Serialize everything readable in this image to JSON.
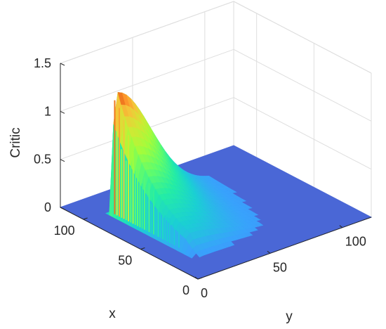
{
  "chart_data": {
    "type": "surface",
    "title": "",
    "xlabel": "x",
    "ylabel": "y",
    "zlabel": "Critic",
    "xlim": [
      0,
      120
    ],
    "ylim": [
      0,
      120
    ],
    "zlim": [
      0,
      1.5
    ],
    "x_ticks": [
      "0",
      "50",
      "100"
    ],
    "y_ticks": [
      "0",
      "50",
      "100"
    ],
    "z_ticks": [
      "0",
      "0.5",
      "1",
      "1.5"
    ],
    "x_tick_values": [
      0,
      50,
      100
    ],
    "y_tick_values": [
      0,
      50,
      100
    ],
    "z_tick_values": [
      0,
      0.5,
      1,
      1.5
    ],
    "grid": true,
    "colormap": "turbo",
    "base_color": "#4a67d6",
    "surface_description_values": {
      "peak_value": 1.25,
      "peak_location": {
        "x": 95,
        "y": 18
      },
      "flat_value": 0
    }
  }
}
